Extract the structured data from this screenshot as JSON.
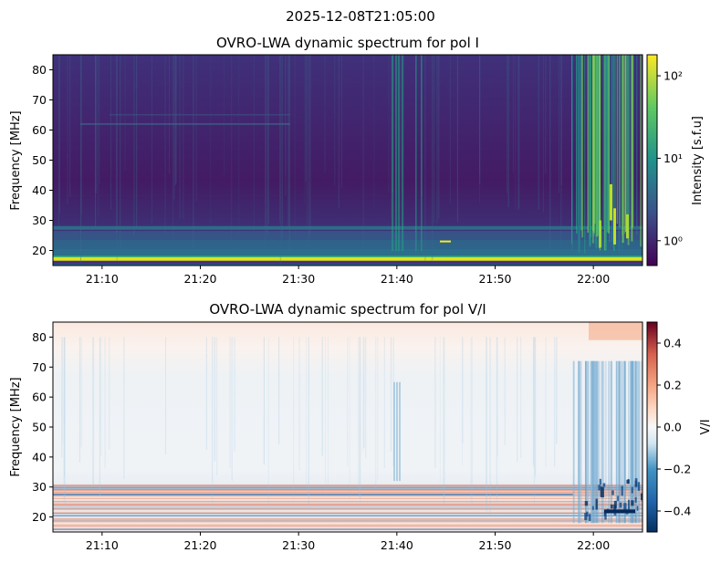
{
  "figure_title": "2025-12-08T21:05:00",
  "colors": {
    "viridis_low": "#440154",
    "viridis_bg": "#3b2a6e",
    "viridis_mid": "#21918c",
    "viridis_high": "#fde725",
    "rdbu_neg": "#053061",
    "rdbu_zero": "#f7f7f7",
    "rdbu_pos": "#67001f"
  },
  "chart_data": [
    {
      "type": "heatmap",
      "title": "OVRO-LWA dynamic spectrum for pol I",
      "ylabel": "Frequency [MHz]",
      "xlabel": "",
      "x_range": [
        "21:05",
        "22:05"
      ],
      "y_range_mhz": [
        15,
        85
      ],
      "x_ticks": [
        "21:10",
        "21:20",
        "21:30",
        "21:40",
        "21:50",
        "22:00"
      ],
      "y_ticks": [
        "20",
        "30",
        "40",
        "50",
        "60",
        "70",
        "80"
      ],
      "colorbar": {
        "label": "Intensity [s.f.u]",
        "scale": "log",
        "range": [
          0.5,
          180
        ],
        "ticks": [
          "10⁰",
          "10¹",
          "10²"
        ],
        "tick_values": [
          1,
          10,
          100
        ],
        "colormap": "viridis"
      },
      "grid": false,
      "features": [
        {
          "kind": "horizontal band",
          "freq_mhz": 17,
          "level": "high"
        },
        {
          "kind": "vertical streaks",
          "times": [
            "21:39",
            "21:41"
          ],
          "level": "mid"
        },
        {
          "kind": "burst cluster",
          "times": [
            "21:58",
            "22:05"
          ],
          "level": "high"
        }
      ]
    },
    {
      "type": "heatmap",
      "title": "OVRO-LWA dynamic spectrum for pol V/I",
      "ylabel": "Frequency [MHz]",
      "xlabel": "",
      "x_range": [
        "21:05",
        "22:05"
      ],
      "y_range_mhz": [
        15,
        85
      ],
      "x_ticks": [
        "21:10",
        "21:20",
        "21:30",
        "21:40",
        "21:50",
        "22:00"
      ],
      "y_ticks": [
        "20",
        "30",
        "40",
        "50",
        "60",
        "70",
        "80"
      ],
      "colorbar": {
        "label": "V/I",
        "scale": "linear",
        "range": [
          -0.5,
          0.5
        ],
        "ticks": [
          "0.4",
          "0.2",
          "0.0",
          "−0.2",
          "−0.4"
        ],
        "tick_values": [
          0.4,
          0.2,
          0.0,
          -0.2,
          -0.4
        ],
        "colormap": "RdBu_r"
      },
      "grid": false
    }
  ]
}
